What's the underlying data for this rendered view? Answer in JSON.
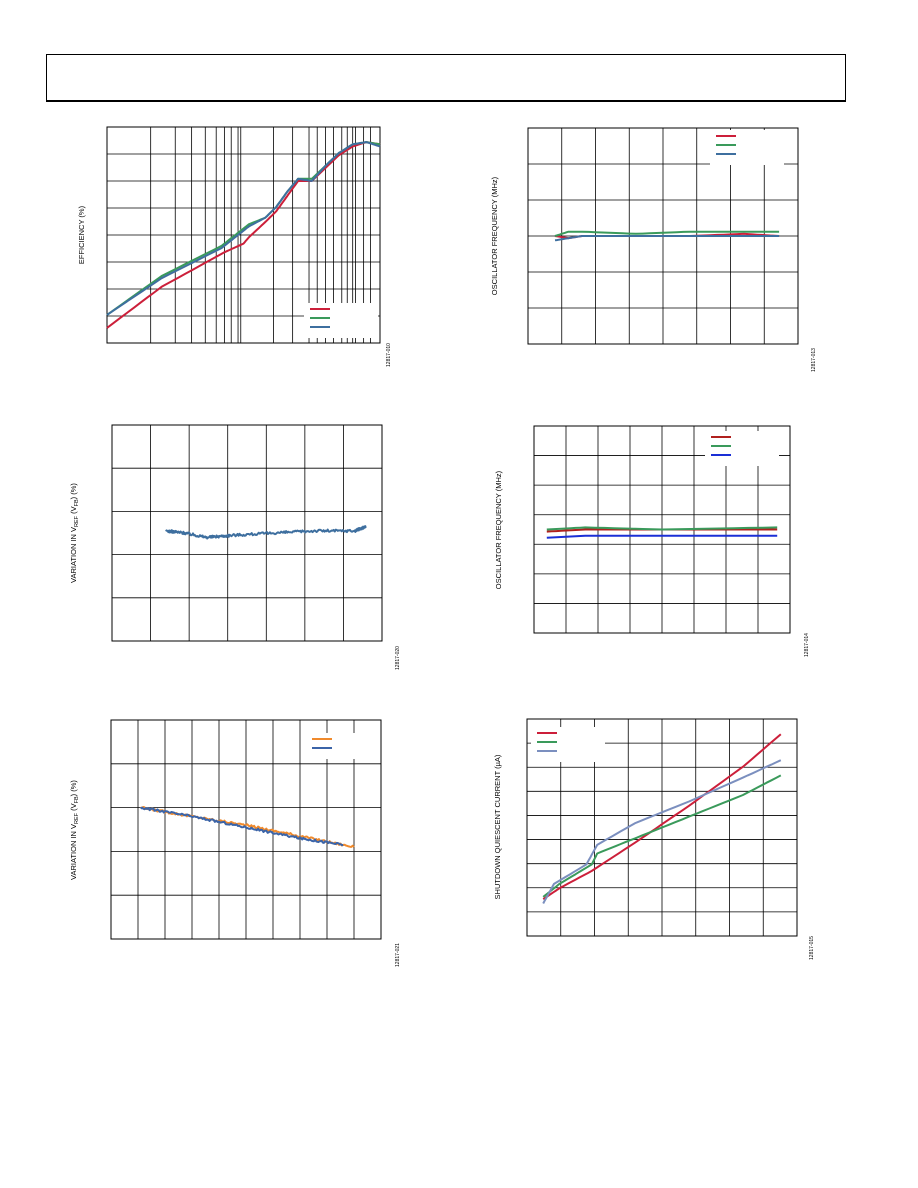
{
  "page": {
    "header": ""
  },
  "colors": {
    "red": "#cc1f3a",
    "green": "#3a9a5b",
    "steel": "#3e6f9f",
    "blue": "#1a2fd6",
    "dark_red": "#b0201e",
    "orange": "#f08a2c",
    "slate": "#3b64a8",
    "lavender": "#7b8fbf"
  },
  "chart_data": [
    {
      "id": "efficiency",
      "type": "line",
      "ylabel": "EFFICIENCY (%)",
      "figure_id": "12817-010",
      "x_scale": "log",
      "grid": true,
      "legend": "bottom-right",
      "series": [
        {
          "color": "#cc1f3a",
          "points": [
            [
              0,
              0.07
            ],
            [
              0.2,
              0.26
            ],
            [
              0.43,
              0.42
            ],
            [
              0.5,
              0.46
            ],
            [
              0.52,
              0.49
            ],
            [
              0.58,
              0.56
            ],
            [
              0.62,
              0.61
            ],
            [
              0.66,
              0.68
            ],
            [
              0.7,
              0.75
            ],
            [
              0.75,
              0.75
            ],
            [
              0.8,
              0.81
            ],
            [
              0.85,
              0.87
            ],
            [
              0.9,
              0.91
            ],
            [
              0.95,
              0.93
            ],
            [
              1,
              0.92
            ]
          ]
        },
        {
          "color": "#3a9a5b",
          "points": [
            [
              0,
              0.13
            ],
            [
              0.2,
              0.31
            ],
            [
              0.42,
              0.45
            ],
            [
              0.48,
              0.51
            ],
            [
              0.52,
              0.55
            ],
            [
              0.58,
              0.58
            ],
            [
              0.62,
              0.63
            ],
            [
              0.66,
              0.7
            ],
            [
              0.7,
              0.76
            ],
            [
              0.75,
              0.76
            ],
            [
              0.8,
              0.82
            ],
            [
              0.85,
              0.88
            ],
            [
              0.9,
              0.92
            ],
            [
              0.95,
              0.93
            ],
            [
              1,
              0.92
            ]
          ]
        },
        {
          "color": "#3e6f9f",
          "points": [
            [
              0,
              0.13
            ],
            [
              0.2,
              0.3
            ],
            [
              0.42,
              0.44
            ],
            [
              0.48,
              0.5
            ],
            [
              0.52,
              0.54
            ],
            [
              0.58,
              0.58
            ],
            [
              0.62,
              0.63
            ],
            [
              0.66,
              0.7
            ],
            [
              0.7,
              0.76
            ],
            [
              0.75,
              0.75
            ],
            [
              0.8,
              0.82
            ],
            [
              0.85,
              0.88
            ],
            [
              0.9,
              0.92
            ],
            [
              0.95,
              0.93
            ],
            [
              1,
              0.91
            ]
          ]
        }
      ]
    },
    {
      "id": "osc-freq-1",
      "type": "line",
      "ylabel": "OSCILLATOR FREQUENCY (MHz)",
      "figure_id": "12817-013",
      "grid": true,
      "legend": "top-right",
      "series": [
        {
          "color": "#cc1f3a",
          "points": [
            [
              0.1,
              0.5
            ],
            [
              0.15,
              0.49
            ],
            [
              0.2,
              0.5
            ],
            [
              0.4,
              0.5
            ],
            [
              0.6,
              0.5
            ],
            [
              0.8,
              0.51
            ],
            [
              0.93,
              0.5
            ]
          ]
        },
        {
          "color": "#3a9a5b",
          "points": [
            [
              0.1,
              0.5
            ],
            [
              0.15,
              0.52
            ],
            [
              0.2,
              0.52
            ],
            [
              0.4,
              0.51
            ],
            [
              0.6,
              0.52
            ],
            [
              0.8,
              0.52
            ],
            [
              0.93,
              0.52
            ]
          ]
        },
        {
          "color": "#3e6f9f",
          "points": [
            [
              0.1,
              0.48
            ],
            [
              0.15,
              0.49
            ],
            [
              0.2,
              0.5
            ],
            [
              0.4,
              0.5
            ],
            [
              0.6,
              0.5
            ],
            [
              0.8,
              0.5
            ],
            [
              0.93,
              0.5
            ]
          ]
        }
      ]
    },
    {
      "id": "vref-var-1",
      "type": "line",
      "ylabel": "VARIATION IN V",
      "ylabel_sub1": "REF",
      "ylabel_mid": " (V",
      "ylabel_sub2": "FB",
      "ylabel_end": ") (%)",
      "figure_id": "12817-020",
      "grid": true,
      "noise": 0.012,
      "series": [
        {
          "color": "#3e6f9f",
          "points": [
            [
              0.2,
              0.51
            ],
            [
              0.27,
              0.5
            ],
            [
              0.35,
              0.48
            ],
            [
              0.45,
              0.49
            ],
            [
              0.6,
              0.5
            ],
            [
              0.75,
              0.51
            ],
            [
              0.9,
              0.51
            ],
            [
              0.94,
              0.53
            ]
          ]
        }
      ]
    },
    {
      "id": "osc-freq-2",
      "type": "line",
      "ylabel": "OSCILLATOR FREQUENCY (MHz)",
      "figure_id": "12817-014",
      "grid": true,
      "legend": "top-right",
      "series": [
        {
          "color": "#b0201e",
          "points": [
            [
              0.05,
              0.49
            ],
            [
              0.2,
              0.5
            ],
            [
              0.5,
              0.5
            ],
            [
              0.95,
              0.5
            ]
          ]
        },
        {
          "color": "#3a9a5b",
          "points": [
            [
              0.05,
              0.5
            ],
            [
              0.2,
              0.51
            ],
            [
              0.5,
              0.5
            ],
            [
              0.95,
              0.51
            ]
          ]
        },
        {
          "color": "#1a2fd6",
          "points": [
            [
              0.05,
              0.46
            ],
            [
              0.2,
              0.47
            ],
            [
              0.5,
              0.47
            ],
            [
              0.95,
              0.47
            ]
          ]
        }
      ]
    },
    {
      "id": "vref-var-2",
      "type": "line",
      "ylabel": "VARIATION IN V",
      "ylabel_sub1": "REF",
      "ylabel_mid": " (V",
      "ylabel_sub2": "FB",
      "ylabel_end": ") (%)",
      "figure_id": "12817-021",
      "grid": true,
      "legend": "top-right",
      "noise": 0.01,
      "series": [
        {
          "color": "#f08a2c",
          "points": [
            [
              0.11,
              0.6
            ],
            [
              0.3,
              0.56
            ],
            [
              0.5,
              0.52
            ],
            [
              0.7,
              0.47
            ],
            [
              0.9,
              0.42
            ]
          ]
        },
        {
          "color": "#3b64a8",
          "points": [
            [
              0.11,
              0.6
            ],
            [
              0.3,
              0.56
            ],
            [
              0.5,
              0.51
            ],
            [
              0.7,
              0.46
            ],
            [
              0.86,
              0.43
            ]
          ]
        }
      ]
    },
    {
      "id": "shutdown-iq",
      "type": "line",
      "ylabel": "SHUTDOWN QUIESCENT CURRENT (µA)",
      "figure_id": "12817-015",
      "grid": true,
      "legend": "top-left",
      "series": [
        {
          "color": "#cc1f3a",
          "points": [
            [
              0.06,
              0.17
            ],
            [
              0.12,
              0.22
            ],
            [
              0.24,
              0.3
            ],
            [
              0.4,
              0.43
            ],
            [
              0.6,
              0.6
            ],
            [
              0.8,
              0.78
            ],
            [
              0.94,
              0.93
            ]
          ]
        },
        {
          "color": "#3a9a5b",
          "points": [
            [
              0.06,
              0.18
            ],
            [
              0.12,
              0.24
            ],
            [
              0.24,
              0.33
            ],
            [
              0.26,
              0.38
            ],
            [
              0.4,
              0.45
            ],
            [
              0.6,
              0.55
            ],
            [
              0.8,
              0.65
            ],
            [
              0.94,
              0.74
            ]
          ]
        },
        {
          "color": "#7b8fbf",
          "points": [
            [
              0.06,
              0.15
            ],
            [
              0.1,
              0.24
            ],
            [
              0.22,
              0.33
            ],
            [
              0.26,
              0.42
            ],
            [
              0.4,
              0.52
            ],
            [
              0.6,
              0.62
            ],
            [
              0.8,
              0.73
            ],
            [
              0.94,
              0.81
            ]
          ]
        }
      ]
    }
  ]
}
